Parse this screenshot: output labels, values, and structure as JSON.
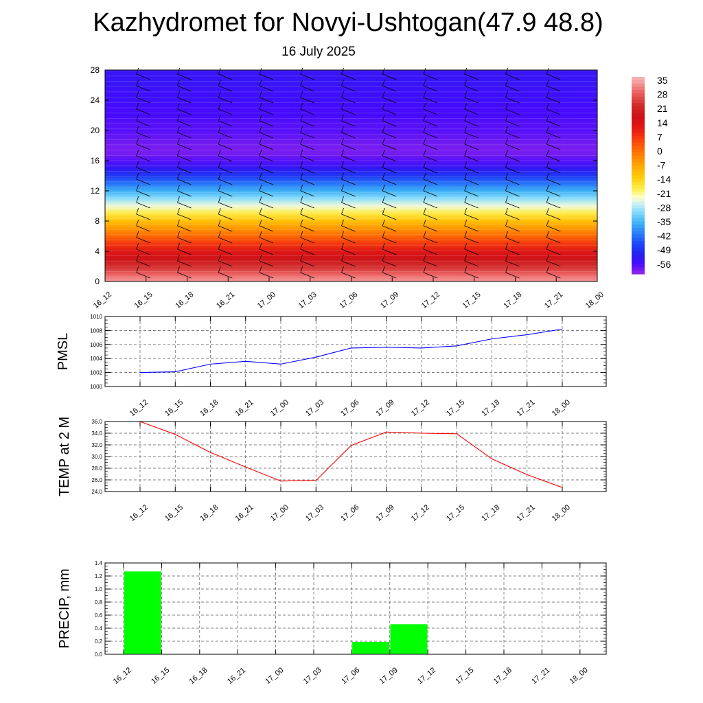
{
  "header": {
    "title": "Kazhydromet for Novyi-Ushtogan(47.9 48.8)",
    "subtitle": "16 July 2025"
  },
  "chart_data": [
    {
      "id": "temperature-height-section",
      "type": "heatmap",
      "title": "",
      "xlabel": "",
      "ylabel": "",
      "x_tick_labels": [
        "16_12",
        "16_15",
        "16_18",
        "16_21",
        "17_00",
        "17_03",
        "17_06",
        "17_09",
        "17_12",
        "17_15",
        "17_18",
        "17_21",
        "18_00"
      ],
      "y_ticks": [
        0,
        4,
        8,
        12,
        16,
        20,
        24,
        28
      ],
      "ylim": [
        0,
        28
      ],
      "colorbar": {
        "labels": [
          "35",
          "28",
          "21",
          "14",
          "7",
          "0",
          "-7",
          "-14",
          "-21",
          "-28",
          "-35",
          "-42",
          "-49",
          "-56"
        ],
        "range": [
          -60,
          38
        ]
      },
      "levels": [
        0,
        1,
        2,
        3,
        4,
        5,
        6,
        7,
        8,
        9,
        10,
        11,
        12,
        13,
        14,
        15,
        16,
        17,
        18,
        19,
        20,
        21,
        22,
        23,
        24,
        25,
        26,
        27,
        28
      ],
      "values_by_level": [
        35,
        30,
        24,
        19,
        14,
        8,
        2,
        -4,
        -10,
        -17,
        -23,
        -29,
        -35,
        -41,
        -47,
        -52,
        -56,
        -58,
        -58,
        -57,
        -56,
        -56,
        -55,
        -55,
        -54,
        -54,
        -53,
        -53,
        -53
      ],
      "grid": false,
      "wind_barbs": true
    },
    {
      "id": "pmsl-chart",
      "type": "line",
      "ylabel": "PMSL",
      "categories": [
        "16_12",
        "16_15",
        "16_18",
        "16_21",
        "17_00",
        "17_03",
        "17_06",
        "17_09",
        "17_12",
        "17_15",
        "17_18",
        "17_21",
        "18_00"
      ],
      "y_ticks": [
        "1000",
        "1002",
        "1004",
        "1006",
        "1008",
        "1010"
      ],
      "ylim": [
        1000,
        1010
      ],
      "values": [
        1002.0,
        1002.1,
        1003.2,
        1003.6,
        1003.2,
        1004.2,
        1005.5,
        1005.6,
        1005.5,
        1005.8,
        1006.8,
        1007.4,
        1008.2
      ],
      "color": "#0000ff",
      "grid": true
    },
    {
      "id": "temp2m-chart",
      "type": "line",
      "ylabel": "TEMP at 2 M",
      "categories": [
        "16_12",
        "16_15",
        "16_18",
        "16_21",
        "17_00",
        "17_03",
        "17_06",
        "17_09",
        "17_12",
        "17_15",
        "17_18",
        "17_21",
        "18_00"
      ],
      "y_ticks": [
        "24.0",
        "26.0",
        "28.0",
        "30.0",
        "32.0",
        "34.0",
        "36.0"
      ],
      "ylim": [
        24,
        36
      ],
      "values": [
        36.0,
        33.8,
        30.7,
        28.2,
        25.8,
        25.9,
        31.9,
        34.2,
        34.0,
        33.9,
        29.6,
        26.9,
        24.7
      ],
      "color": "#ff0000",
      "grid": true
    },
    {
      "id": "precip-chart",
      "type": "bar",
      "ylabel": "PRECIP, mm",
      "categories": [
        "16_12",
        "16_15",
        "16_18",
        "16_21",
        "17_00",
        "17_03",
        "17_06",
        "17_09",
        "17_12",
        "17_15",
        "17_18",
        "17_21",
        "18_00"
      ],
      "y_ticks": [
        "0.0",
        "0.2",
        "0.4",
        "0.6",
        "0.8",
        "1.0",
        "1.2",
        "1.4"
      ],
      "ylim": [
        0,
        1.4
      ],
      "values": [
        0,
        1.27,
        0,
        0,
        0,
        0,
        0,
        0.19,
        0.46,
        0,
        0,
        0,
        0
      ],
      "color": "#00ff00",
      "grid": true
    }
  ]
}
